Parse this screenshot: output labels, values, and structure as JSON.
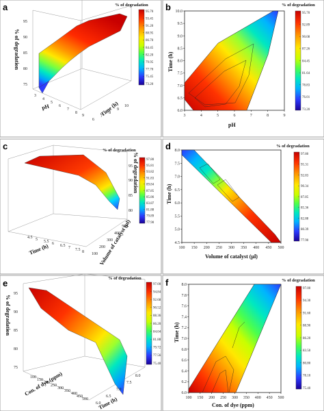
{
  "colorbar_colors": [
    "#1a0099",
    "#2b3bff",
    "#00b4ff",
    "#00e8c0",
    "#4cff4c",
    "#c8ff00",
    "#ffe800",
    "#ff9a00",
    "#ff3300",
    "#c80000"
  ],
  "chart_data": [
    {
      "panel": "a",
      "type": "surface3d",
      "legend_title": "% of degradation",
      "xlabel": "pH",
      "ylabel": "Time (h)",
      "zlabel": "% of degradation",
      "x_ticks": [
        "3",
        "4",
        "5",
        "6",
        "7",
        "8",
        "9"
      ],
      "y_ticks": [
        "6",
        "7",
        "8",
        "9",
        "10"
      ],
      "z_ticks": [
        "75",
        "80",
        "85",
        "90",
        "95"
      ],
      "colorbar_ticks": [
        "95.70",
        "93.45",
        "91.20",
        "88.95",
        "86.70",
        "84.45",
        "82.20",
        "79.95",
        "77.70",
        "75.45",
        "73.20"
      ],
      "z_range": [
        73.2,
        95.7
      ]
    },
    {
      "panel": "b",
      "type": "contour",
      "legend_title": "% of degradation",
      "xlabel": "pH",
      "ylabel": "Time (h)",
      "x_ticks": [
        "3",
        "4",
        "5",
        "6",
        "7",
        "8",
        "9"
      ],
      "y_ticks": [
        "6.0",
        "6.5",
        "7.0",
        "7.5",
        "8.0",
        "8.5",
        "9.0",
        "9.5",
        "10.0"
      ],
      "xlim": [
        3,
        9
      ],
      "ylim": [
        6,
        10
      ],
      "colorbar_ticks": [
        "95.70",
        "92.89",
        "90.08",
        "87.26",
        "84.45",
        "81.64",
        "78.83",
        "76.01",
        "73.20"
      ],
      "z_range": [
        73.2,
        95.7
      ]
    },
    {
      "panel": "c",
      "type": "surface3d",
      "legend_title": "% of degradation",
      "xlabel": "Time (h)",
      "ylabel": "Volume of catalyst (µl)",
      "zlabel": "% of degradation",
      "x_ticks": [
        "4.5",
        "5",
        "5.5",
        "6",
        "6.5",
        "7",
        "7.5",
        "8"
      ],
      "y_ticks": [
        "100",
        "200",
        "300",
        "400",
        "500"
      ],
      "z_ticks": [
        "80",
        "85",
        "90",
        "95"
      ],
      "colorbar_ticks": [
        "97.80",
        "95.81",
        "93.82",
        "91.83",
        "89.84",
        "87.85",
        "85.86",
        "83.87",
        "81.88",
        "79.89",
        "77.90"
      ],
      "z_range": [
        77.9,
        97.8
      ]
    },
    {
      "panel": "d",
      "type": "contour",
      "legend_title": "% of degradation",
      "xlabel": "Volume of catalyst (µl)",
      "ylabel": "Time (h)",
      "x_ticks": [
        "100",
        "150",
        "200",
        "250",
        "300",
        "350",
        "400",
        "450",
        "500"
      ],
      "y_ticks": [
        "4.5",
        "5.0",
        "5.5",
        "6.0",
        "6.5",
        "7.0",
        "7.5",
        "8.0"
      ],
      "xlim": [
        100,
        500
      ],
      "ylim": [
        4.5,
        8.0
      ],
      "colorbar_ticks": [
        "97.80",
        "95.31",
        "92.83",
        "90.34",
        "87.85",
        "85.36",
        "82.88",
        "80.39",
        "77.90"
      ],
      "z_range": [
        77.9,
        97.8
      ]
    },
    {
      "panel": "e",
      "type": "surface3d",
      "legend_title": "% of degradation",
      "xlabel": "Con. of dye (ppm)",
      "ylabel": "Time (h)",
      "zlabel": "% of degradation",
      "x_ticks": [
        "100",
        "150",
        "200",
        "250",
        "300",
        "350",
        "400",
        "450",
        "500"
      ],
      "y_ticks": [
        "6.0",
        "6.5",
        "7.0",
        "7.5",
        "8.0"
      ],
      "z_ticks": [
        "75",
        "80",
        "85",
        "90",
        "95"
      ],
      "colorbar_ticks": [
        "97.00",
        "94.84",
        "92.68",
        "90.52",
        "88.36",
        "86.20",
        "84.04",
        "81.88",
        "79.72",
        "77.56",
        "75.40"
      ],
      "z_range": [
        75.4,
        97.0
      ]
    },
    {
      "panel": "f",
      "type": "contour",
      "legend_title": "% of degradation",
      "xlabel": "Con. of dye (ppm)",
      "ylabel": "Time (h)",
      "x_ticks": [
        "100",
        "150",
        "200",
        "250",
        "300",
        "350",
        "400",
        "450",
        "500"
      ],
      "y_ticks": [
        "6.0",
        "6.2",
        "6.4",
        "6.6",
        "6.8",
        "7.0",
        "7.2",
        "7.4",
        "7.6",
        "7.8",
        "8.0"
      ],
      "xlim": [
        100,
        500
      ],
      "ylim": [
        6.0,
        8.0
      ],
      "colorbar_ticks": [
        "97.00",
        "94.30",
        "91.60",
        "88.90",
        "86.20",
        "83.50",
        "80.80",
        "78.10",
        "75.40"
      ],
      "z_range": [
        75.4,
        97.0
      ]
    }
  ]
}
